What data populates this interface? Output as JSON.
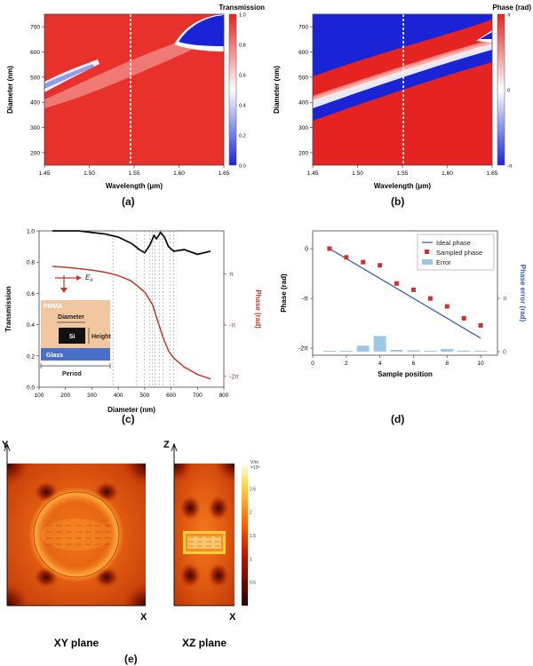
{
  "panels": {
    "a": {
      "caption": "(a)",
      "colorbar_title": "Transmission",
      "xlabel": "Wavelength (μm)",
      "ylabel": "Diameter (nm)",
      "xticks": [
        "1.45",
        "1.50",
        "1.55",
        "1.60",
        "1.65"
      ],
      "yticks": [
        "200",
        "300",
        "400",
        "500",
        "600",
        "700"
      ],
      "colorbar_ticks": [
        "1.0",
        "0.8",
        "0.6",
        "0.4",
        "0.2",
        "0.0"
      ],
      "xlim": [
        1.45,
        1.65
      ],
      "ylim": [
        150,
        750
      ],
      "marker_x": 1.55
    },
    "b": {
      "caption": "(b)",
      "colorbar_title": "Phase (rad)",
      "xlabel": "Wavelength (μm)",
      "ylabel": "Diameter (nm)",
      "xticks": [
        "1.45",
        "1.50",
        "1.55",
        "1.60",
        "1.65"
      ],
      "yticks": [
        "200",
        "300",
        "400",
        "500",
        "600",
        "700"
      ],
      "colorbar_ticks": [
        "π",
        "0",
        "-π"
      ],
      "xlim": [
        1.45,
        1.65
      ],
      "ylim": [
        150,
        750
      ],
      "marker_x": 1.55
    },
    "c": {
      "caption": "(c)",
      "xlabel": "Diameter (nm)",
      "ylabel_left": "Transmission",
      "ylabel_right": "Phase (rad)",
      "xticks": [
        "100",
        "200",
        "300",
        "400",
        "500",
        "600",
        "700",
        "800"
      ],
      "yticks_left": [
        "0.0",
        "0.2",
        "0.4",
        "0.6",
        "0.8",
        "1.0"
      ],
      "yticks_right": [
        "π",
        "-π",
        "-2π"
      ],
      "inset": {
        "pmma": "PMMA",
        "diameter": "Diameter",
        "si": "Si",
        "height": "Height",
        "glass": "Glass",
        "period": "Period",
        "field_label": "E",
        "field_sub": "x"
      },
      "sample_diameters": [
        380,
        470,
        500,
        520,
        530,
        540,
        555,
        570,
        595,
        610
      ]
    },
    "d": {
      "caption": "(d)",
      "xlabel": "Sample position",
      "ylabel_left": "Phase (rad)",
      "ylabel_right": "Phase error (rad)",
      "xticks": [
        "0",
        "2",
        "4",
        "6",
        "8",
        "10"
      ],
      "yticks_left": [
        "0",
        "-π",
        "-2π"
      ],
      "yticks_right": [
        "π",
        "0"
      ],
      "legend": [
        "Ideal phase",
        "Sampled phase",
        "Error"
      ]
    },
    "e": {
      "caption": "(e)",
      "xy_label": "XY plane",
      "xz_label": "XZ plane",
      "xy_axis_v": "Y",
      "xy_axis_h": "X",
      "xz_axis_v": "Z",
      "xz_axis_h": "X",
      "colorbar_unit": "V/m",
      "colorbar_exp": "×10⁶",
      "colorbar_ticks": [
        "2.5",
        "2",
        "1.5",
        "1",
        "0.5"
      ]
    }
  },
  "chart_data": [
    {
      "type": "heatmap",
      "panel": "a",
      "title": "Transmission",
      "xlabel": "Wavelength (μm)",
      "ylabel": "Diameter (nm)",
      "xlim": [
        1.45,
        1.65
      ],
      "ylim": [
        150,
        750
      ],
      "colorbar_range": [
        0.0,
        1.0
      ],
      "colormap": [
        "#1a24d6",
        "#ffffff",
        "#e52421"
      ]
    },
    {
      "type": "heatmap",
      "panel": "b",
      "title": "Phase (rad)",
      "xlabel": "Wavelength (μm)",
      "ylabel": "Diameter (nm)",
      "xlim": [
        1.45,
        1.65
      ],
      "ylim": [
        150,
        750
      ],
      "colorbar_range": [
        "-π",
        "π"
      ],
      "colormap": [
        "#1a24d6",
        "#ffffff",
        "#e52421"
      ]
    },
    {
      "type": "line",
      "panel": "c",
      "xlabel": "Diameter (nm)",
      "ylabel": "Transmission",
      "y2label": "Phase (rad)",
      "xlim": [
        100,
        800
      ],
      "ylim": [
        0,
        1.0
      ],
      "series": [
        {
          "axis": "left",
          "color": "#111111",
          "x": [
            150,
            200,
            250,
            300,
            350,
            400,
            450,
            480,
            500,
            520,
            535,
            545,
            560,
            575,
            590,
            610,
            650,
            700,
            750
          ],
          "y": [
            1.0,
            1.0,
            1.0,
            0.99,
            0.98,
            0.96,
            0.92,
            0.88,
            0.86,
            0.91,
            0.97,
            0.95,
            0.99,
            0.96,
            0.9,
            0.87,
            0.88,
            0.85,
            0.87
          ]
        },
        {
          "axis": "right",
          "color": "#c0392b",
          "x": [
            150,
            200,
            250,
            300,
            350,
            400,
            450,
            500,
            530,
            550,
            570,
            590,
            610,
            650,
            700,
            750
          ],
          "y": [
            0.0,
            -0.05,
            -0.12,
            -0.2,
            -0.32,
            -0.5,
            -0.8,
            -1.4,
            -2.1,
            -3.0,
            -3.9,
            -4.6,
            -5.0,
            -5.5,
            -5.9,
            -6.15
          ]
        }
      ]
    },
    {
      "type": "line",
      "panel": "d",
      "xlabel": "Sample position",
      "ylabel": "Phase (rad)",
      "y2label": "Phase error (rad)",
      "xlim": [
        0,
        11
      ],
      "series": [
        {
          "name": "Ideal phase",
          "color": "#3a5fb0",
          "x": [
            1,
            10
          ],
          "y": [
            0,
            -5.655
          ]
        },
        {
          "name": "Sampled phase",
          "color": "#d03030",
          "x": [
            1,
            2,
            3,
            4,
            5,
            6,
            7,
            8,
            9,
            10
          ],
          "y": [
            0,
            -0.55,
            -0.85,
            -1.05,
            -2.2,
            -2.6,
            -3.15,
            -3.65,
            -4.4,
            -4.85
          ]
        },
        {
          "name": "Error",
          "color": "#9cc8e8",
          "x": [
            1,
            2,
            3,
            4,
            5,
            6,
            7,
            8,
            9,
            10
          ],
          "y": [
            0.02,
            0.02,
            0.35,
            0.92,
            0.1,
            0.08,
            0.04,
            0.16,
            0.06,
            0.03
          ]
        }
      ]
    },
    {
      "type": "heatmap",
      "panel": "e",
      "colorbar_unit": "V/m",
      "colorbar_range": [
        0,
        3.0
      ],
      "colormap": [
        "#2a0000",
        "#b01800",
        "#ff6a00",
        "#ffd24a",
        "#fffbe0"
      ]
    }
  ]
}
